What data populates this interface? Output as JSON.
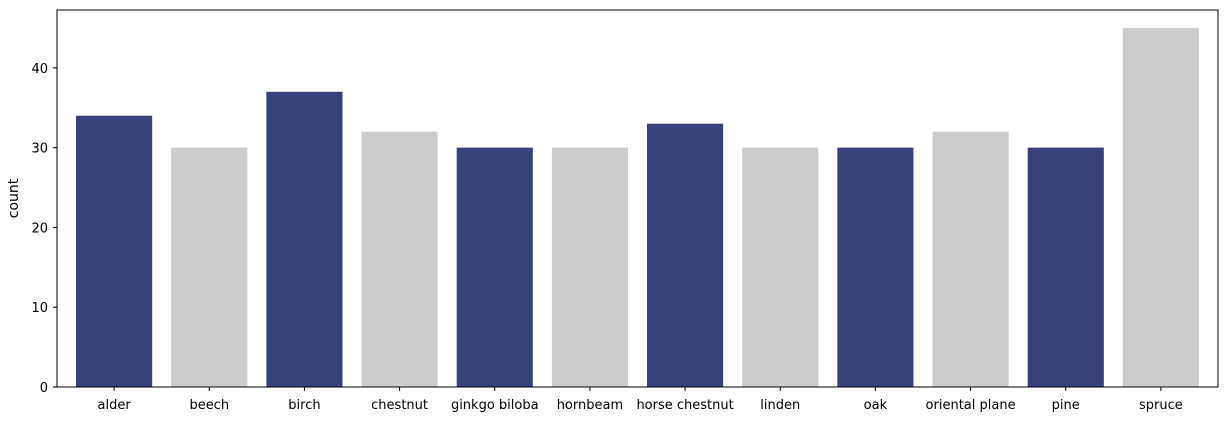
{
  "chart_data": {
    "type": "bar",
    "categories": [
      "alder",
      "beech",
      "birch",
      "chestnut",
      "ginkgo biloba",
      "hornbeam",
      "horse chestnut",
      "linden",
      "oak",
      "oriental plane",
      "pine",
      "spruce"
    ],
    "values": [
      34,
      30,
      37,
      32,
      30,
      30,
      33,
      30,
      30,
      32,
      30,
      45
    ],
    "bar_colors": [
      "#37417a",
      "#cccccc",
      "#37417a",
      "#cccccc",
      "#37417a",
      "#cccccc",
      "#37417a",
      "#cccccc",
      "#37417a",
      "#cccccc",
      "#37417a",
      "#cccccc"
    ],
    "title": "",
    "xlabel": "",
    "ylabel": "count",
    "ylim": [
      0,
      47.25
    ],
    "yticks": [
      0,
      10,
      20,
      30,
      40
    ],
    "grid": false,
    "legend": "none"
  }
}
